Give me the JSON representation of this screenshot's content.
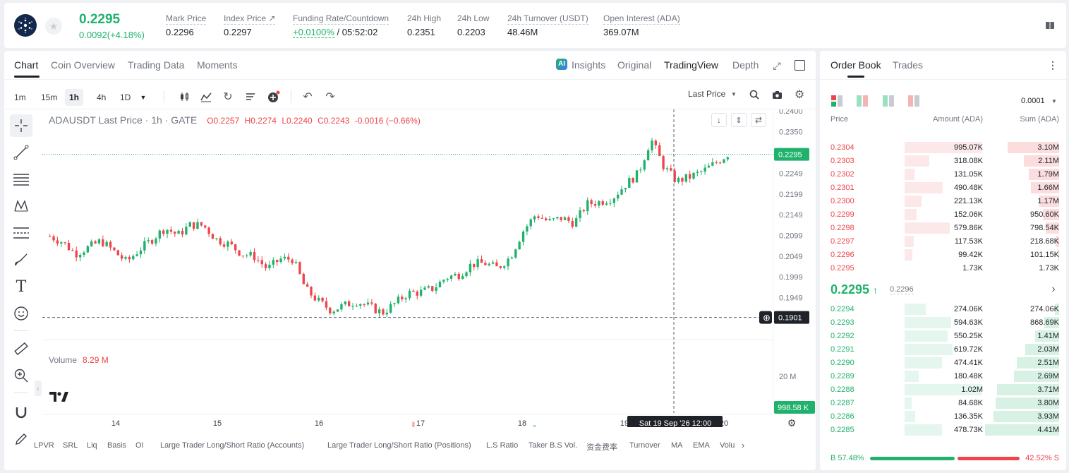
{
  "ticker": {
    "last_price": "0.2295",
    "change": "0.0092(+4.18%)",
    "stats": [
      {
        "label": "Mark Price",
        "value": "0.2296"
      },
      {
        "label": "Index Price ↗",
        "value": "0.2297"
      },
      {
        "label": "Funding Rate/Countdown",
        "value": "+0.0100%",
        "value2": " / 05:52:02"
      },
      {
        "label": "24h High",
        "value": "0.2351"
      },
      {
        "label": "24h Low",
        "value": "0.2203"
      },
      {
        "label": "24h Turnover (USDT)",
        "value": "48.46M"
      },
      {
        "label": "Open Interest (ADA)",
        "value": "369.07M"
      }
    ]
  },
  "chart_tabs": [
    "Chart",
    "Coin Overview",
    "Trading Data",
    "Moments"
  ],
  "view_tabs": [
    "Insights",
    "Original",
    "TradingView",
    "Depth"
  ],
  "timeframes": [
    "1m",
    "15m",
    "1h",
    "4h",
    "1D"
  ],
  "price_type": "Last Price",
  "legend": {
    "symbol": "ADAUSDT Last Price · 1h · GATE",
    "o": "O0.2257",
    "h": "H0.2274",
    "l": "L0.2240",
    "c": "C0.2243",
    "chg": "-0.0016 (−0.66%)"
  },
  "volume_label": "Volume",
  "volume_value": "8.29 M",
  "chart_data": {
    "type": "candlestick",
    "price_axis_ticks": [
      "0.2400",
      "0.2350",
      "0.2249",
      "0.2199",
      "0.2149",
      "0.2099",
      "0.2049",
      "0.1999",
      "0.1949"
    ],
    "current_price_tag": "0.2295",
    "crosshair_price_tag": "0.1901",
    "crosshair_time_tag": "Sat 19 Sep '26   12:00",
    "volume_axis_tick": "20 M",
    "volume_tag": "998.58 K",
    "x_ticks": [
      "14",
      "15",
      "16",
      "17",
      "18",
      "19",
      "20"
    ],
    "close_path": [
      0.2097,
      0.2083,
      0.2055,
      0.207,
      0.2086,
      0.2061,
      0.2035,
      0.2065,
      0.209,
      0.2117,
      0.21,
      0.2125,
      0.2123,
      0.209,
      0.2078,
      0.2055,
      0.2048,
      0.2018,
      0.2042,
      0.2042,
      0.1969,
      0.194,
      0.1918,
      0.193,
      0.194,
      0.1927,
      0.1912,
      0.1935,
      0.196,
      0.1962,
      0.1972,
      0.1998,
      0.2005,
      0.203,
      0.2032,
      0.202,
      0.2047,
      0.211,
      0.215,
      0.2132,
      0.2141,
      0.2129,
      0.2175,
      0.218,
      0.219,
      0.2222,
      0.2248,
      0.2332,
      0.2265,
      0.223,
      0.224,
      0.2253,
      0.2273,
      0.2295
    ],
    "volume_path": [
      3,
      3,
      3,
      4,
      3,
      5,
      3,
      4,
      5,
      6,
      4,
      5,
      10,
      4,
      3,
      4,
      5,
      4,
      4,
      8,
      9,
      5,
      4,
      6,
      5,
      4,
      3,
      5,
      12,
      4,
      5,
      4,
      6,
      5,
      3,
      5,
      7,
      12,
      8,
      5,
      6,
      5,
      7,
      6,
      8,
      5,
      7,
      11,
      9,
      6,
      6,
      5,
      4,
      4
    ]
  },
  "book": {
    "tabs": [
      "Order Book",
      "Trades"
    ],
    "precision": "0.0001",
    "headers": [
      "Price",
      "Amount (ADA)",
      "Sum (ADA)"
    ],
    "asks": [
      {
        "price": "0.2304",
        "amount": "995.07K",
        "sum": "3.10M",
        "amount_frac": 1.0,
        "sum_frac": 0.7
      },
      {
        "price": "0.2303",
        "amount": "318.08K",
        "sum": "2.11M",
        "amount_frac": 0.32,
        "sum_frac": 0.48
      },
      {
        "price": "0.2302",
        "amount": "131.05K",
        "sum": "1.79M",
        "amount_frac": 0.13,
        "sum_frac": 0.41
      },
      {
        "price": "0.2301",
        "amount": "490.48K",
        "sum": "1.66M",
        "amount_frac": 0.49,
        "sum_frac": 0.38
      },
      {
        "price": "0.2300",
        "amount": "221.13K",
        "sum": "1.17M",
        "amount_frac": 0.22,
        "sum_frac": 0.27
      },
      {
        "price": "0.2299",
        "amount": "152.06K",
        "sum": "950.60K",
        "amount_frac": 0.15,
        "sum_frac": 0.22
      },
      {
        "price": "0.2298",
        "amount": "579.86K",
        "sum": "798.54K",
        "amount_frac": 0.58,
        "sum_frac": 0.18
      },
      {
        "price": "0.2297",
        "amount": "117.53K",
        "sum": "218.68K",
        "amount_frac": 0.12,
        "sum_frac": 0.05
      },
      {
        "price": "0.2296",
        "amount": "99.42K",
        "sum": "101.15K",
        "amount_frac": 0.1,
        "sum_frac": 0.02
      },
      {
        "price": "0.2295",
        "amount": "1.73K",
        "sum": "1.73K",
        "amount_frac": 0.0,
        "sum_frac": 0.0
      }
    ],
    "mid_price": "0.2295",
    "mid_mark": "0.2296",
    "bids": [
      {
        "price": "0.2294",
        "amount": "274.06K",
        "sum": "274.06K",
        "amount_frac": 0.27,
        "sum_frac": 0.06
      },
      {
        "price": "0.2293",
        "amount": "594.63K",
        "sum": "868.69K",
        "amount_frac": 0.6,
        "sum_frac": 0.2
      },
      {
        "price": "0.2292",
        "amount": "550.25K",
        "sum": "1.41M",
        "amount_frac": 0.55,
        "sum_frac": 0.32
      },
      {
        "price": "0.2291",
        "amount": "619.72K",
        "sum": "2.03M",
        "amount_frac": 0.62,
        "sum_frac": 0.46
      },
      {
        "price": "0.2290",
        "amount": "474.41K",
        "sum": "2.51M",
        "amount_frac": 0.48,
        "sum_frac": 0.57
      },
      {
        "price": "0.2289",
        "amount": "180.48K",
        "sum": "2.69M",
        "amount_frac": 0.18,
        "sum_frac": 0.61
      },
      {
        "price": "0.2288",
        "amount": "1.02M",
        "sum": "3.71M",
        "amount_frac": 1.0,
        "sum_frac": 0.84
      },
      {
        "price": "0.2287",
        "amount": "84.68K",
        "sum": "3.80M",
        "amount_frac": 0.09,
        "sum_frac": 0.86
      },
      {
        "price": "0.2286",
        "amount": "136.35K",
        "sum": "3.93M",
        "amount_frac": 0.14,
        "sum_frac": 0.89
      },
      {
        "price": "0.2285",
        "amount": "478.73K",
        "sum": "4.41M",
        "amount_frac": 0.48,
        "sum_frac": 1.0
      }
    ],
    "buy_ratio": "B 57.48%",
    "sell_ratio": "42.52% S",
    "buy_frac": 0.5748
  },
  "indicators": [
    "LPVR",
    "SRL",
    "Liq",
    "Basis",
    "OI",
    "Large Trader Long/Short Ratio (Accounts)",
    "Large Trader Long/Short Ratio (Positions)",
    "L.S Ratio",
    "Taker B.S Vol.",
    "资金费率",
    "Turnover",
    "MA",
    "EMA",
    "Volu"
  ],
  "colors": {
    "up": "#20b26c",
    "down": "#ef454a",
    "text": "#1f2329",
    "muted": "#717680"
  }
}
